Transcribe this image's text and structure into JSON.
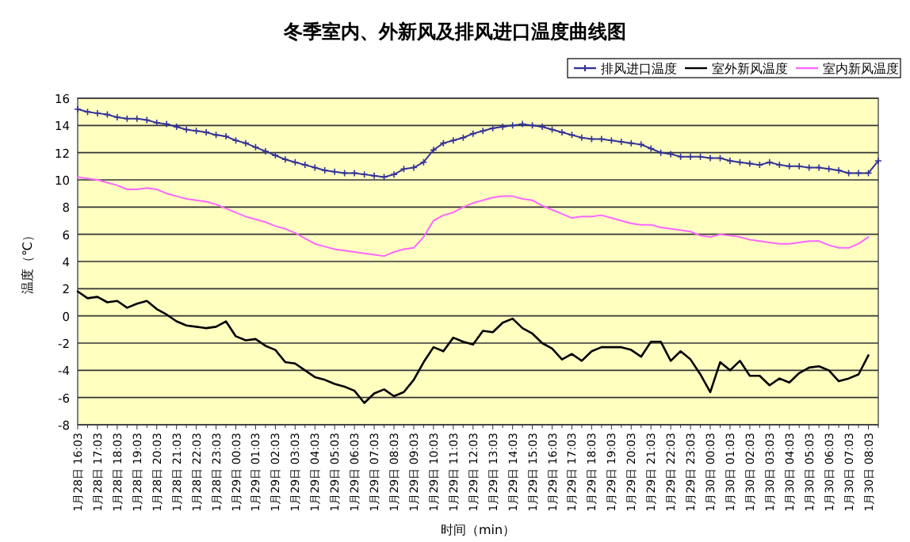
{
  "chart_data": {
    "type": "line",
    "title": "冬季室内、外新风及排风进口温度曲线图",
    "xlabel": "时间（min）",
    "ylabel": "温度（℃）",
    "ylim": [
      -8,
      16
    ],
    "yticks": [
      -8,
      -6,
      -4,
      -2,
      0,
      2,
      4,
      6,
      8,
      10,
      12,
      14,
      16
    ],
    "categories": [
      "1月28日 16:03",
      null,
      "1月28日 17:03",
      null,
      "1月28日 18:03",
      null,
      "1月28日 19:03",
      null,
      "1月28日 20:03",
      null,
      "1月28日 21:03",
      null,
      "1月28日 22:03",
      null,
      "1月28日 23:03",
      null,
      "1月29日 00:03",
      null,
      "1月29日 01:03",
      null,
      "1月29日 02:03",
      null,
      "1月29日 03:03",
      null,
      "1月29日 04:03",
      null,
      "1月29日 05:03",
      null,
      "1月29日 06:03",
      null,
      "1月29日 07:03",
      null,
      "1月29日 08:03",
      null,
      "1月29日 09:03",
      null,
      "1月29日 10:03",
      null,
      "1月29日 11:03",
      null,
      "1月29日 12:03",
      null,
      "1月29日 13:03",
      null,
      "1月29日 14:03",
      null,
      "1月29日 15:03",
      null,
      "1月29日 16:03",
      null,
      "1月29日 17:03",
      null,
      "1月29日 18:03",
      null,
      "1月29日 19:03",
      null,
      "1月29日 20:03",
      null,
      "1月29日 21:03",
      null,
      "1月29日 22:03",
      null,
      "1月29日 23:03",
      null,
      "1月30日 00:03",
      null,
      "1月30日 01:03",
      null,
      "1月30日 02:03",
      null,
      "1月30日 03:03",
      null,
      "1月30日 04:03",
      null,
      "1月30日 05:03",
      null,
      "1月30日 06:03",
      null,
      "1月30日 07:03",
      null,
      "1月30日 08:03",
      null
    ],
    "grid": "y",
    "legend": "top right",
    "series": [
      {
        "name": "排风进口温度",
        "color": "#333399",
        "marker": "cross",
        "values": [
          15.2,
          15.0,
          14.9,
          14.8,
          14.6,
          14.5,
          14.5,
          14.4,
          14.2,
          14.1,
          13.9,
          13.7,
          13.6,
          13.5,
          13.3,
          13.2,
          12.9,
          12.7,
          12.4,
          12.1,
          11.8,
          11.5,
          11.3,
          11.1,
          10.9,
          10.7,
          10.6,
          10.5,
          10.5,
          10.4,
          10.3,
          10.2,
          10.4,
          10.8,
          10.9,
          11.3,
          12.2,
          12.7,
          12.9,
          13.1,
          13.4,
          13.6,
          13.8,
          13.9,
          14.0,
          14.1,
          14.0,
          13.9,
          13.7,
          13.5,
          13.3,
          13.1,
          13.0,
          13.0,
          12.9,
          12.8,
          12.7,
          12.6,
          12.3,
          12.0,
          11.9,
          11.7,
          11.7,
          11.7,
          11.6,
          11.6,
          11.4,
          11.3,
          11.2,
          11.1,
          11.3,
          11.1,
          11.0,
          11.0,
          10.9,
          10.9,
          10.8,
          10.7,
          10.5,
          10.5,
          10.5,
          11.4
        ]
      },
      {
        "name": "室外新风温度",
        "color": "#000000",
        "values": [
          1.8,
          1.3,
          1.4,
          1.0,
          1.1,
          0.6,
          0.9,
          1.1,
          0.5,
          0.1,
          -0.4,
          -0.7,
          -0.8,
          -0.9,
          -0.8,
          -0.4,
          -1.5,
          -1.8,
          -1.7,
          -2.2,
          -2.5,
          -3.4,
          -3.5,
          -4.0,
          -4.5,
          -4.7,
          -5.0,
          -5.2,
          -5.5,
          -6.4,
          -5.7,
          -5.4,
          -5.9,
          -5.6,
          -4.7,
          -3.4,
          -2.3,
          -2.6,
          -1.6,
          -1.9,
          -2.1,
          -1.1,
          -1.2,
          -0.5,
          -0.2,
          -0.9,
          -1.3,
          -2.0,
          -2.4,
          -3.2,
          -2.8,
          -3.3,
          -2.6,
          -2.3,
          -2.3,
          -2.3,
          -2.5,
          -3.0,
          -1.9,
          -1.9,
          -3.3,
          -2.6,
          -3.2,
          -4.3,
          -5.6,
          -3.4,
          -4.0,
          -3.3,
          -4.4,
          -4.4,
          -5.1,
          -4.6,
          -4.9,
          -4.2,
          -3.8,
          -3.7,
          -4.0,
          -4.8,
          -4.6,
          -4.3,
          -2.9,
          null
        ]
      },
      {
        "name": "室内新风温度",
        "color": "#ff66ff",
        "values": [
          10.2,
          10.1,
          10.0,
          9.8,
          9.6,
          9.3,
          9.3,
          9.4,
          9.3,
          9.0,
          8.8,
          8.6,
          8.5,
          8.4,
          8.2,
          7.9,
          7.6,
          7.3,
          7.1,
          6.9,
          6.6,
          6.4,
          6.1,
          5.7,
          5.3,
          5.1,
          4.9,
          4.8,
          4.7,
          4.6,
          4.5,
          4.4,
          4.7,
          4.9,
          5.0,
          5.8,
          7.0,
          7.4,
          7.6,
          8.0,
          8.3,
          8.5,
          8.7,
          8.8,
          8.8,
          8.6,
          8.5,
          8.1,
          7.8,
          7.5,
          7.2,
          7.3,
          7.3,
          7.4,
          7.2,
          7.0,
          6.8,
          6.7,
          6.7,
          6.5,
          6.4,
          6.3,
          6.2,
          5.9,
          5.8,
          6.0,
          5.9,
          5.8,
          5.6,
          5.5,
          5.4,
          5.3,
          5.3,
          5.4,
          5.5,
          5.5,
          5.2,
          5.0,
          5.0,
          5.3,
          5.8,
          null
        ]
      }
    ]
  }
}
